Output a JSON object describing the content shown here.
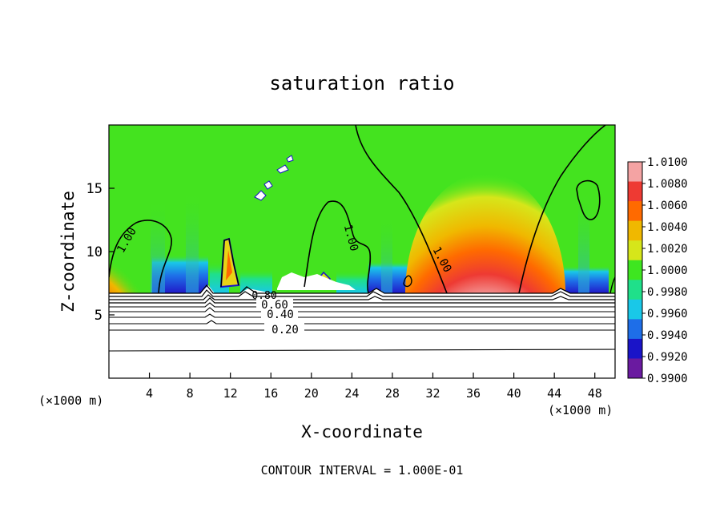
{
  "chart_data": {
    "type": "heatmap",
    "title": "saturation ratio",
    "xlabel": "X-coordinate",
    "ylabel": "Z-coordinate",
    "x_unit_label": "(×1000 m)",
    "y_unit_label": "(×1000 m)",
    "footer": "CONTOUR INTERVAL = 1.000E-01",
    "xlim": [
      0,
      50
    ],
    "ylim": [
      0,
      20
    ],
    "x_ticks": [
      "4",
      "8",
      "12",
      "16",
      "20",
      "24",
      "28",
      "32",
      "36",
      "40",
      "44",
      "48"
    ],
    "y_ticks": [
      "5",
      "10",
      "15"
    ],
    "colorbar": {
      "range": [
        0.99,
        1.01
      ],
      "labels": [
        "1.0100",
        "1.0080",
        "1.0060",
        "1.0040",
        "1.0020",
        "1.0000",
        "0.9980",
        "0.9960",
        "0.9940",
        "0.9920",
        "0.9900"
      ],
      "colors": [
        "#f4a3a3",
        "#ee3a33",
        "#ff6a00",
        "#f0b800",
        "#d6e61a",
        "#3ee620",
        "#1fe08a",
        "#19c8e8",
        "#1e6ee8",
        "#1a14c8",
        "#6a1aa0"
      ]
    },
    "contour_labels": [
      "1.00",
      "1.00",
      "1.00",
      "0.80",
      "0.60",
      "0.40",
      "0.20"
    ],
    "contour_interval": 0.1
  }
}
